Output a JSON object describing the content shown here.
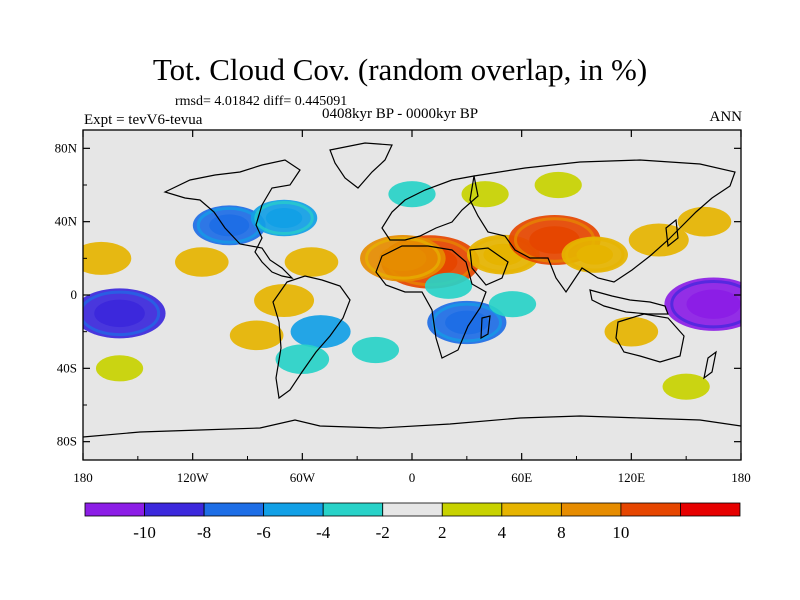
{
  "header": {
    "title": "Tot. Cloud Cov. (random overlap, in %)",
    "stats": "rmsd= 4.01842 diff= 0.445091",
    "period": "0408kyr BP - 0000kyr BP",
    "experiment": "Expt = tevV6-tevua",
    "season": "ANN"
  },
  "axes": {
    "lat_labels": [
      "80N",
      "40N",
      "0",
      "40S",
      "80S"
    ],
    "lat_values": [
      80,
      40,
      0,
      -40,
      -80
    ],
    "lon_labels": [
      "180",
      "120W",
      "60W",
      "0",
      "60E",
      "120E",
      "180"
    ],
    "lon_values": [
      -180,
      -120,
      -60,
      0,
      60,
      120,
      180
    ]
  },
  "colorbar": {
    "tick_labels": [
      "-10",
      "-8",
      "-6",
      "-4",
      "-2",
      "2",
      "4",
      "8",
      "10"
    ],
    "colors": [
      "#8c1ee6",
      "#3c28dc",
      "#1e6ee6",
      "#12a0e6",
      "#28d2c8",
      "#e6e6e6",
      "#c8d200",
      "#e6b400",
      "#e68c00",
      "#e64600",
      "#e60000"
    ]
  },
  "chart_data": {
    "type": "heatmap",
    "title": "Tot. Cloud Cov. (random overlap, in %)",
    "xlim": [
      -180,
      180
    ],
    "ylim": [
      -90,
      90
    ],
    "levels": [
      -10,
      -8,
      -6,
      -4,
      -2,
      2,
      4,
      8,
      10
    ],
    "anomalies": [
      {
        "lon": 10,
        "lat": 18,
        "value": 11
      },
      {
        "lon": -5,
        "lat": 20,
        "value": 9
      },
      {
        "lon": 50,
        "lat": 22,
        "value": 7
      },
      {
        "lon": 78,
        "lat": 30,
        "value": 10
      },
      {
        "lon": 100,
        "lat": 22,
        "value": 6
      },
      {
        "lon": 135,
        "lat": 30,
        "value": 5
      },
      {
        "lon": 160,
        "lat": 40,
        "value": 4
      },
      {
        "lon": -170,
        "lat": 20,
        "value": 5
      },
      {
        "lon": -115,
        "lat": 18,
        "value": 4
      },
      {
        "lon": -55,
        "lat": 18,
        "value": 4
      },
      {
        "lon": -70,
        "lat": -3,
        "value": 5
      },
      {
        "lon": -85,
        "lat": -22,
        "value": 4
      },
      {
        "lon": 120,
        "lat": -20,
        "value": 4
      },
      {
        "lon": -100,
        "lat": 38,
        "value": -7
      },
      {
        "lon": -70,
        "lat": 42,
        "value": -6
      },
      {
        "lon": -50,
        "lat": -20,
        "value": -5
      },
      {
        "lon": -60,
        "lat": -35,
        "value": -4
      },
      {
        "lon": 30,
        "lat": -15,
        "value": -8
      },
      {
        "lon": 55,
        "lat": -5,
        "value": -3
      },
      {
        "lon": 165,
        "lat": -5,
        "value": -11
      },
      {
        "lon": -160,
        "lat": -10,
        "value": -10
      },
      {
        "lon": 20,
        "lat": 5,
        "value": -3
      },
      {
        "lon": -20,
        "lat": -30,
        "value": -3
      },
      {
        "lon": 40,
        "lat": 55,
        "value": 3
      },
      {
        "lon": 0,
        "lat": 55,
        "value": -3
      },
      {
        "lon": 80,
        "lat": 60,
        "value": 3
      },
      {
        "lon": -160,
        "lat": -40,
        "value": 3
      },
      {
        "lon": 150,
        "lat": -50,
        "value": 3
      }
    ]
  }
}
